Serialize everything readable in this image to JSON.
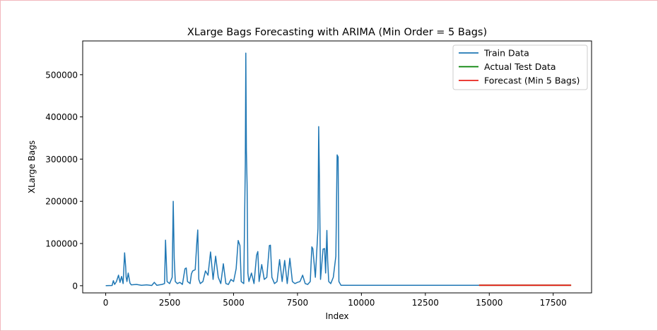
{
  "chart_data": {
    "type": "line",
    "title": "XLarge Bags Forecasting with ARIMA (Min Order = 5 Bags)",
    "xlabel": "Index",
    "ylabel": "XLarge Bags",
    "xlim": [
      -900,
      19000
    ],
    "ylim": [
      -17000,
      580000
    ],
    "x_ticks": [
      0,
      2500,
      5000,
      7500,
      10000,
      12500,
      15000,
      17500
    ],
    "y_ticks": [
      0,
      100000,
      200000,
      300000,
      400000,
      500000
    ],
    "grid": false,
    "legend_position": "upper right",
    "series": [
      {
        "name": "Train Data",
        "color": "#1f77b4",
        "x": [
          0,
          250,
          300,
          350,
          420,
          500,
          560,
          620,
          680,
          740,
          780,
          800,
          830,
          880,
          950,
          1000,
          1200,
          1400,
          1600,
          1800,
          1900,
          2000,
          2200,
          2300,
          2340,
          2400,
          2500,
          2600,
          2640,
          2680,
          2720,
          2800,
          2900,
          3000,
          3100,
          3150,
          3200,
          3300,
          3350,
          3400,
          3500,
          3560,
          3600,
          3640,
          3700,
          3800,
          3900,
          4000,
          4100,
          4200,
          4300,
          4400,
          4500,
          4600,
          4700,
          4800,
          4900,
          5000,
          5100,
          5180,
          5250,
          5300,
          5400,
          5460,
          5480,
          5500,
          5530,
          5560,
          5600,
          5700,
          5800,
          5900,
          5950,
          6000,
          6100,
          6200,
          6300,
          6400,
          6440,
          6500,
          6600,
          6700,
          6800,
          6900,
          7000,
          7100,
          7200,
          7300,
          7400,
          7500,
          7600,
          7700,
          7800,
          7900,
          8000,
          8060,
          8100,
          8200,
          8300,
          8330,
          8360,
          8400,
          8500,
          8560,
          8600,
          8650,
          8680,
          8720,
          8800,
          8900,
          9000,
          9050,
          9090,
          9120,
          9200,
          9500,
          10000,
          12000,
          14600
        ],
        "values": [
          0,
          500,
          12000,
          3000,
          10000,
          25000,
          8000,
          22000,
          5000,
          78000,
          45000,
          20000,
          10000,
          30000,
          6000,
          2000,
          3000,
          1000,
          2000,
          500,
          8000,
          1000,
          3000,
          5000,
          108000,
          10000,
          5000,
          20000,
          200000,
          65000,
          10000,
          5000,
          8000,
          3000,
          40000,
          42000,
          10000,
          5000,
          28000,
          35000,
          38000,
          100000,
          132000,
          15000,
          5000,
          10000,
          35000,
          25000,
          80000,
          15000,
          70000,
          20000,
          5000,
          52000,
          5000,
          3000,
          15000,
          10000,
          40000,
          107000,
          95000,
          10000,
          5000,
          290000,
          551000,
          320000,
          240000,
          30000,
          10000,
          30000,
          5000,
          72000,
          81000,
          10000,
          50000,
          15000,
          20000,
          95000,
          96000,
          20000,
          5000,
          10000,
          62000,
          10000,
          60000,
          5000,
          65000,
          10000,
          5000,
          8000,
          10000,
          25000,
          5000,
          3000,
          10000,
          92000,
          88000,
          20000,
          135000,
          377000,
          250000,
          15000,
          87000,
          88000,
          30000,
          131000,
          60000,
          10000,
          5000,
          20000,
          70000,
          310000,
          305000,
          10000,
          1000,
          1000,
          1000,
          1000,
          1000
        ]
      },
      {
        "name": "Actual Test Data",
        "color": "#008000",
        "x": [
          14600,
          18200
        ],
        "values": [
          1000,
          1000
        ]
      },
      {
        "name": "Forecast (Min 5 Bags)",
        "color": "#e8231c",
        "x": [
          14600,
          18200
        ],
        "values": [
          1000,
          1000
        ]
      }
    ]
  }
}
